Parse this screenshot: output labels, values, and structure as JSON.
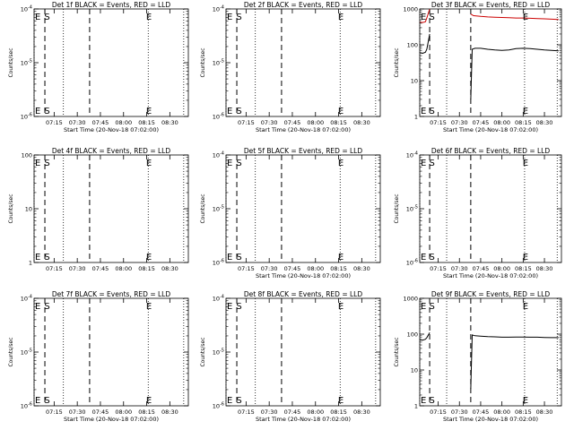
{
  "chart_data": [
    {
      "type": "line",
      "title": "Det 1f BLACK = Events, RED = LLD",
      "xlabel": "Start Time (20-Nov-18 07:02:00)",
      "ylabel": "Counts/sec",
      "yscale": "log",
      "ylim": [
        1e-06,
        0.0001
      ],
      "yticks": [
        "10^-6",
        "10^-5",
        "10^-4"
      ],
      "ytick_values": [
        1e-06,
        1e-05,
        0.0001
      ],
      "xlim": [
        "07:02",
        "08:42"
      ],
      "xticks": [
        "07:15",
        "07:30",
        "07:45",
        "08:00",
        "08:15",
        "08:30"
      ],
      "markers": [
        {
          "label": "E",
          "time": "07:02"
        },
        {
          "label": "S",
          "time": "07:08"
        },
        {
          "label": "E",
          "time": "08:14"
        }
      ],
      "dotted_lines": [
        "07:02",
        "07:21",
        "08:16",
        "08:39"
      ],
      "dashed_lines": [
        "07:09",
        "07:38"
      ],
      "series": []
    },
    {
      "type": "line",
      "title": "Det 2f BLACK = Events, RED = LLD",
      "xlabel": "Start Time (20-Nov-18 07:02:00)",
      "ylabel": "Counts/sec",
      "yscale": "log",
      "ylim": [
        1e-06,
        0.0001
      ],
      "yticks": [
        "10^-6",
        "10^-5",
        "10^-4"
      ],
      "ytick_values": [
        1e-06,
        1e-05,
        0.0001
      ],
      "xlim": [
        "07:02",
        "08:42"
      ],
      "xticks": [
        "07:15",
        "07:30",
        "07:45",
        "08:00",
        "08:15",
        "08:30"
      ],
      "markers": [
        {
          "label": "E",
          "time": "07:02"
        },
        {
          "label": "S",
          "time": "07:08"
        },
        {
          "label": "E",
          "time": "08:14"
        }
      ],
      "dotted_lines": [
        "07:02",
        "07:21",
        "08:16",
        "08:39"
      ],
      "dashed_lines": [
        "07:09",
        "07:38"
      ],
      "series": []
    },
    {
      "type": "line",
      "title": "Det 3f BLACK = Events, RED = LLD",
      "xlabel": "Start Time (20-Nov-18 07:02:00)",
      "ylabel": "Counts/sec",
      "yscale": "log",
      "ylim": [
        1,
        1000
      ],
      "yticks": [
        "1",
        "10",
        "100",
        "1000"
      ],
      "ytick_values": [
        1,
        10,
        100,
        1000
      ],
      "xlim": [
        "07:02",
        "08:42"
      ],
      "xticks": [
        "07:15",
        "07:30",
        "07:45",
        "08:00",
        "08:15",
        "08:30"
      ],
      "markers": [
        {
          "label": "E",
          "time": "07:02"
        },
        {
          "label": "S",
          "time": "07:08"
        },
        {
          "label": "E",
          "time": "08:14"
        }
      ],
      "dotted_lines": [
        "07:02",
        "07:21",
        "08:16",
        "08:39"
      ],
      "dashed_lines": [
        "07:09",
        "07:38"
      ],
      "series": [
        {
          "color": "#000000",
          "times": [
            "07:02",
            "07:04",
            "07:06",
            "07:07",
            "07:09"
          ],
          "values": [
            60,
            58,
            62,
            75,
            200
          ]
        },
        {
          "color": "#000000",
          "times": [
            "07:38",
            "07:39",
            "07:41",
            "07:45",
            "07:50",
            "07:55",
            "08:00",
            "08:05",
            "08:10",
            "08:15",
            "08:20",
            "08:25",
            "08:30",
            "08:35",
            "08:40"
          ],
          "values": [
            3,
            75,
            80,
            80,
            75,
            72,
            70,
            72,
            78,
            80,
            78,
            75,
            72,
            70,
            68
          ]
        },
        {
          "color": "#cc0000",
          "times": [
            "07:02",
            "07:04",
            "07:06",
            "07:07",
            "07:09"
          ],
          "values": [
            430,
            420,
            440,
            560,
            1000
          ]
        },
        {
          "color": "#cc0000",
          "times": [
            "07:38",
            "07:40",
            "07:45",
            "07:50",
            "07:55",
            "08:00",
            "08:05",
            "08:10",
            "08:15",
            "08:20",
            "08:25",
            "08:30",
            "08:35",
            "08:40"
          ],
          "values": [
            720,
            650,
            620,
            600,
            590,
            580,
            570,
            560,
            560,
            550,
            540,
            530,
            520,
            510
          ]
        }
      ]
    },
    {
      "type": "line",
      "title": "Det 4f BLACK = Events, RED = LLD",
      "xlabel": "",
      "ylabel": "Counts/sec",
      "yscale": "log",
      "ylim": [
        1,
        100
      ],
      "yticks": [
        "1",
        "10",
        "100"
      ],
      "ytick_values": [
        1,
        10,
        100
      ],
      "xlim": [
        "07:02",
        "08:42"
      ],
      "xticks": [
        "07:15",
        "07:30",
        "07:45",
        "08:00",
        "08:15",
        "08:30"
      ],
      "markers": [
        {
          "label": "E",
          "time": "07:02"
        },
        {
          "label": "S",
          "time": "07:08"
        },
        {
          "label": "E",
          "time": "08:14"
        }
      ],
      "dotted_lines": [
        "07:02",
        "07:21",
        "08:16",
        "08:39"
      ],
      "dashed_lines": [
        "07:09",
        "07:38"
      ],
      "series": []
    },
    {
      "type": "line",
      "title": "Det 5f BLACK = Events, RED = LLD",
      "xlabel": "Start Time (20-Nov-18 07:02:00)",
      "ylabel": "Counts/sec",
      "yscale": "log",
      "ylim": [
        1e-06,
        0.0001
      ],
      "yticks": [
        "10^-6",
        "10^-5",
        "10^-4"
      ],
      "ytick_values": [
        1e-06,
        1e-05,
        0.0001
      ],
      "xlim": [
        "07:02",
        "08:42"
      ],
      "xticks": [
        "07:15",
        "07:30",
        "07:45",
        "08:00",
        "08:15",
        "08:30"
      ],
      "markers": [
        {
          "label": "E",
          "time": "07:02"
        },
        {
          "label": "S",
          "time": "07:08"
        },
        {
          "label": "E",
          "time": "08:14"
        }
      ],
      "dotted_lines": [
        "07:02",
        "07:21",
        "08:16",
        "08:39"
      ],
      "dashed_lines": [
        "07:09",
        "07:38"
      ],
      "series": []
    },
    {
      "type": "line",
      "title": "Det 6f BLACK = Events, RED = LLD",
      "xlabel": "Start Time (20-Nov-18 07:02:00)",
      "ylabel": "Counts/sec",
      "yscale": "log",
      "ylim": [
        1e-06,
        0.0001
      ],
      "yticks": [
        "10^-6",
        "10^-5",
        "10^-4"
      ],
      "ytick_values": [
        1e-06,
        1e-05,
        0.0001
      ],
      "xlim": [
        "07:02",
        "08:42"
      ],
      "xticks": [
        "07:15",
        "07:30",
        "07:45",
        "08:00",
        "08:15",
        "08:30"
      ],
      "markers": [
        {
          "label": "E",
          "time": "07:02"
        },
        {
          "label": "S",
          "time": "07:08"
        },
        {
          "label": "E",
          "time": "08:14"
        }
      ],
      "dotted_lines": [
        "07:02",
        "07:21",
        "08:16",
        "08:39"
      ],
      "dashed_lines": [
        "07:09",
        "07:38"
      ],
      "series": []
    },
    {
      "type": "line",
      "title": "Det 7f BLACK = Events, RED = LLD",
      "xlabel": "Start Time (20-Nov-18 07:02:00)",
      "ylabel": "Counts/sec",
      "yscale": "log",
      "ylim": [
        1e-06,
        0.0001
      ],
      "yticks": [
        "10^-6",
        "10^-5",
        "10^-4"
      ],
      "ytick_values": [
        1e-06,
        1e-05,
        0.0001
      ],
      "xlim": [
        "07:02",
        "08:42"
      ],
      "xticks": [
        "07:15",
        "07:30",
        "07:45",
        "08:00",
        "08:15",
        "08:30"
      ],
      "markers": [
        {
          "label": "E",
          "time": "07:02"
        },
        {
          "label": "S",
          "time": "07:08"
        },
        {
          "label": "E",
          "time": "08:14"
        }
      ],
      "dotted_lines": [
        "07:02",
        "07:21",
        "08:16",
        "08:39"
      ],
      "dashed_lines": [
        "07:09",
        "07:38"
      ],
      "series": []
    },
    {
      "type": "line",
      "title": "Det 8f BLACK = Events, RED = LLD",
      "xlabel": "Start Time (20-Nov-18 07:02:00)",
      "ylabel": "Counts/sec",
      "yscale": "log",
      "ylim": [
        1e-06,
        0.0001
      ],
      "yticks": [
        "10^-6",
        "10^-5",
        "10^-4"
      ],
      "ytick_values": [
        1e-06,
        1e-05,
        0.0001
      ],
      "xlim": [
        "07:02",
        "08:42"
      ],
      "xticks": [
        "07:15",
        "07:30",
        "07:45",
        "08:00",
        "08:15",
        "08:30"
      ],
      "markers": [
        {
          "label": "E",
          "time": "07:02"
        },
        {
          "label": "S",
          "time": "07:08"
        },
        {
          "label": "E",
          "time": "08:14"
        }
      ],
      "dotted_lines": [
        "07:02",
        "07:21",
        "08:16",
        "08:39"
      ],
      "dashed_lines": [
        "07:09",
        "07:38"
      ],
      "series": []
    },
    {
      "type": "line",
      "title": "Det 9f BLACK = Events, RED = LLD",
      "xlabel": "Start Time (20-Nov-18 07:02:00)",
      "ylabel": "Counts/sec",
      "yscale": "log",
      "ylim": [
        1,
        1000
      ],
      "yticks": [
        "1",
        "10",
        "100",
        "1000"
      ],
      "ytick_values": [
        1,
        10,
        100,
        1000
      ],
      "xlim": [
        "07:02",
        "08:42"
      ],
      "xticks": [
        "07:15",
        "07:30",
        "07:45",
        "08:00",
        "08:15",
        "08:30"
      ],
      "markers": [
        {
          "label": "E",
          "time": "07:02"
        },
        {
          "label": "S",
          "time": "07:08"
        },
        {
          "label": "E",
          "time": "08:14"
        }
      ],
      "dotted_lines": [
        "07:02",
        "07:21",
        "08:16",
        "08:39"
      ],
      "dashed_lines": [
        "07:09",
        "07:38"
      ],
      "series": [
        {
          "color": "#000000",
          "times": [
            "07:02",
            "07:04",
            "07:06",
            "07:07",
            "07:09"
          ],
          "values": [
            70,
            68,
            72,
            80,
            110
          ]
        },
        {
          "color": "#000000",
          "times": [
            "07:38",
            "07:39",
            "07:41",
            "07:45",
            "07:50",
            "07:55",
            "08:00",
            "08:05",
            "08:10",
            "08:15",
            "08:20",
            "08:25",
            "08:30",
            "08:35",
            "08:40"
          ],
          "values": [
            3,
            95,
            90,
            88,
            85,
            84,
            82,
            82,
            83,
            83,
            82,
            82,
            81,
            80,
            80
          ]
        }
      ]
    }
  ]
}
